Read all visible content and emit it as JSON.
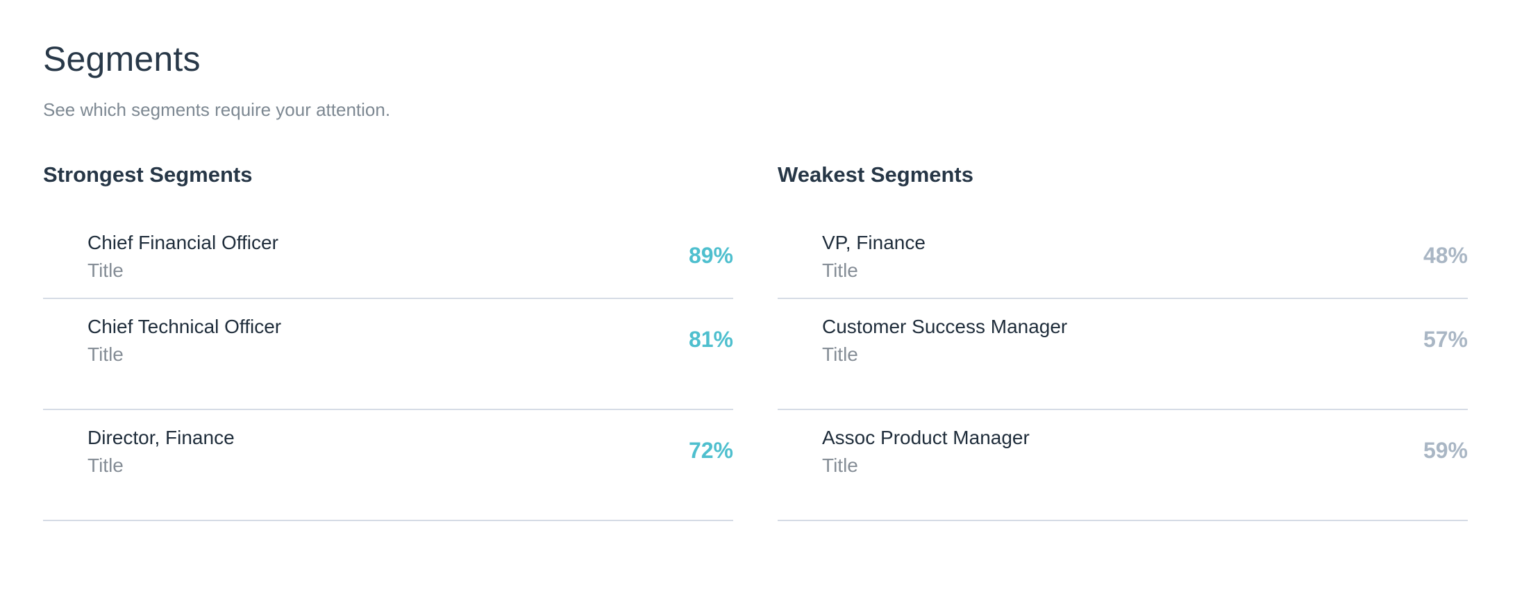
{
  "header": {
    "title": "Segments",
    "subtitle": "See which segments require your attention."
  },
  "strongest": {
    "title": "Strongest Segments",
    "items": [
      {
        "name": "Chief Financial Officer",
        "type": "Title",
        "value": "89%"
      },
      {
        "name": "Chief Technical Officer",
        "type": "Title",
        "value": "81%"
      },
      {
        "name": "Director, Finance",
        "type": "Title",
        "value": "72%"
      }
    ]
  },
  "weakest": {
    "title": "Weakest Segments",
    "items": [
      {
        "name": "VP, Finance",
        "type": "Title",
        "value": "48%"
      },
      {
        "name": "Customer Success Manager",
        "type": "Title",
        "value": "57%"
      },
      {
        "name": "Assoc Product Manager",
        "type": "Title",
        "value": "59%"
      }
    ]
  },
  "colors": {
    "strong_value": "#4ebfce",
    "weak_value": "#a9b6c4",
    "divider": "#d5dbe5"
  }
}
